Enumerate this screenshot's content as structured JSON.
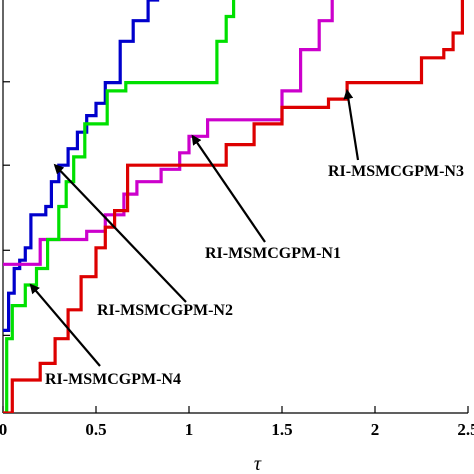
{
  "chart_data": {
    "type": "line",
    "title": "",
    "xlabel": "τ",
    "ylabel": "",
    "xlim": [
      0,
      2.5
    ],
    "ylim": [
      0,
      1
    ],
    "x_ticks": [
      {
        "value": 0,
        "label": "0"
      },
      {
        "value": 0.5,
        "label": "0.5"
      },
      {
        "value": 1,
        "label": "1"
      },
      {
        "value": 1.5,
        "label": "1.5"
      },
      {
        "value": 2,
        "label": "2"
      },
      {
        "value": 2.5,
        "label": "2.5"
      }
    ],
    "y_tick_values": [
      0.188,
      0.394,
      0.6,
      0.802
    ],
    "grid": false,
    "series": [
      {
        "name": "RI-MSMCGPM-N2",
        "color": "#0000cc",
        "points": [
          [
            0.0,
            0.2
          ],
          [
            0.03,
            0.2
          ],
          [
            0.03,
            0.29
          ],
          [
            0.06,
            0.29
          ],
          [
            0.06,
            0.35
          ],
          [
            0.09,
            0.35
          ],
          [
            0.09,
            0.37
          ],
          [
            0.12,
            0.37
          ],
          [
            0.12,
            0.4
          ],
          [
            0.15,
            0.4
          ],
          [
            0.15,
            0.48
          ],
          [
            0.23,
            0.48
          ],
          [
            0.23,
            0.5
          ],
          [
            0.26,
            0.5
          ],
          [
            0.26,
            0.56
          ],
          [
            0.3,
            0.56
          ],
          [
            0.3,
            0.6
          ],
          [
            0.35,
            0.6
          ],
          [
            0.35,
            0.64
          ],
          [
            0.4,
            0.64
          ],
          [
            0.4,
            0.68
          ],
          [
            0.45,
            0.68
          ],
          [
            0.45,
            0.72
          ],
          [
            0.5,
            0.72
          ],
          [
            0.5,
            0.75
          ],
          [
            0.55,
            0.75
          ],
          [
            0.55,
            0.8
          ],
          [
            0.63,
            0.8
          ],
          [
            0.63,
            0.9
          ],
          [
            0.7,
            0.9
          ],
          [
            0.7,
            0.95
          ],
          [
            0.78,
            0.95
          ],
          [
            0.78,
            1.0
          ],
          [
            0.84,
            1.0
          ]
        ]
      },
      {
        "name": "RI-MSMCGPM-N1",
        "color": "#cc00cc",
        "points": [
          [
            0.0,
            0.36
          ],
          [
            0.2,
            0.36
          ],
          [
            0.2,
            0.42
          ],
          [
            0.45,
            0.42
          ],
          [
            0.45,
            0.44
          ],
          [
            0.55,
            0.44
          ],
          [
            0.55,
            0.48
          ],
          [
            0.65,
            0.48
          ],
          [
            0.65,
            0.53
          ],
          [
            0.72,
            0.53
          ],
          [
            0.72,
            0.56
          ],
          [
            0.85,
            0.56
          ],
          [
            0.85,
            0.59
          ],
          [
            0.95,
            0.59
          ],
          [
            0.95,
            0.63
          ],
          [
            1.0,
            0.63
          ],
          [
            1.0,
            0.67
          ],
          [
            1.1,
            0.67
          ],
          [
            1.1,
            0.71
          ],
          [
            1.5,
            0.71
          ],
          [
            1.5,
            0.78
          ],
          [
            1.6,
            0.78
          ],
          [
            1.6,
            0.88
          ],
          [
            1.7,
            0.88
          ],
          [
            1.7,
            0.95
          ],
          [
            1.77,
            0.95
          ],
          [
            1.77,
            1.0
          ]
        ]
      },
      {
        "name": "RI-MSMCGPM-N4",
        "color": "#00e000",
        "points": [
          [
            0.0,
            0.0
          ],
          [
            0.02,
            0.0
          ],
          [
            0.02,
            0.18
          ],
          [
            0.05,
            0.18
          ],
          [
            0.05,
            0.26
          ],
          [
            0.12,
            0.26
          ],
          [
            0.12,
            0.31
          ],
          [
            0.18,
            0.31
          ],
          [
            0.18,
            0.35
          ],
          [
            0.24,
            0.35
          ],
          [
            0.24,
            0.42
          ],
          [
            0.3,
            0.42
          ],
          [
            0.3,
            0.5
          ],
          [
            0.34,
            0.5
          ],
          [
            0.34,
            0.56
          ],
          [
            0.38,
            0.56
          ],
          [
            0.38,
            0.62
          ],
          [
            0.44,
            0.62
          ],
          [
            0.44,
            0.7
          ],
          [
            0.56,
            0.7
          ],
          [
            0.56,
            0.78
          ],
          [
            0.66,
            0.78
          ],
          [
            0.66,
            0.8
          ],
          [
            1.15,
            0.8
          ],
          [
            1.15,
            0.9
          ],
          [
            1.2,
            0.9
          ],
          [
            1.2,
            0.96
          ],
          [
            1.24,
            0.96
          ],
          [
            1.24,
            1.0
          ]
        ]
      },
      {
        "name": "RI-MSMCGPM-N3",
        "color": "#dd0000",
        "points": [
          [
            0.0,
            0.0
          ],
          [
            0.05,
            0.0
          ],
          [
            0.05,
            0.08
          ],
          [
            0.2,
            0.08
          ],
          [
            0.2,
            0.12
          ],
          [
            0.28,
            0.12
          ],
          [
            0.28,
            0.18
          ],
          [
            0.35,
            0.18
          ],
          [
            0.35,
            0.25
          ],
          [
            0.42,
            0.25
          ],
          [
            0.42,
            0.33
          ],
          [
            0.5,
            0.33
          ],
          [
            0.5,
            0.4
          ],
          [
            0.55,
            0.4
          ],
          [
            0.55,
            0.45
          ],
          [
            0.6,
            0.45
          ],
          [
            0.6,
            0.49
          ],
          [
            0.67,
            0.49
          ],
          [
            0.67,
            0.6
          ],
          [
            1.2,
            0.6
          ],
          [
            1.2,
            0.65
          ],
          [
            1.35,
            0.65
          ],
          [
            1.35,
            0.7
          ],
          [
            1.5,
            0.7
          ],
          [
            1.5,
            0.74
          ],
          [
            1.75,
            0.74
          ],
          [
            1.75,
            0.76
          ],
          [
            1.85,
            0.76
          ],
          [
            1.85,
            0.8
          ],
          [
            2.25,
            0.8
          ],
          [
            2.25,
            0.86
          ],
          [
            2.37,
            0.86
          ],
          [
            2.37,
            0.88
          ],
          [
            2.42,
            0.88
          ],
          [
            2.42,
            0.92
          ],
          [
            2.47,
            0.92
          ],
          [
            2.47,
            1.0
          ]
        ]
      }
    ],
    "annotations": [
      {
        "text": "RI-MSMCGPM-N2",
        "target": [
          0.28,
          0.6
        ]
      },
      {
        "text": "RI-MSMCGPM-N1",
        "target": [
          1.02,
          0.67
        ]
      },
      {
        "text": "RI-MSMCGPM-N3",
        "target": [
          1.85,
          0.78
        ]
      },
      {
        "text": "RI-MSMCGPM-N4",
        "target": [
          0.15,
          0.31
        ]
      }
    ]
  }
}
